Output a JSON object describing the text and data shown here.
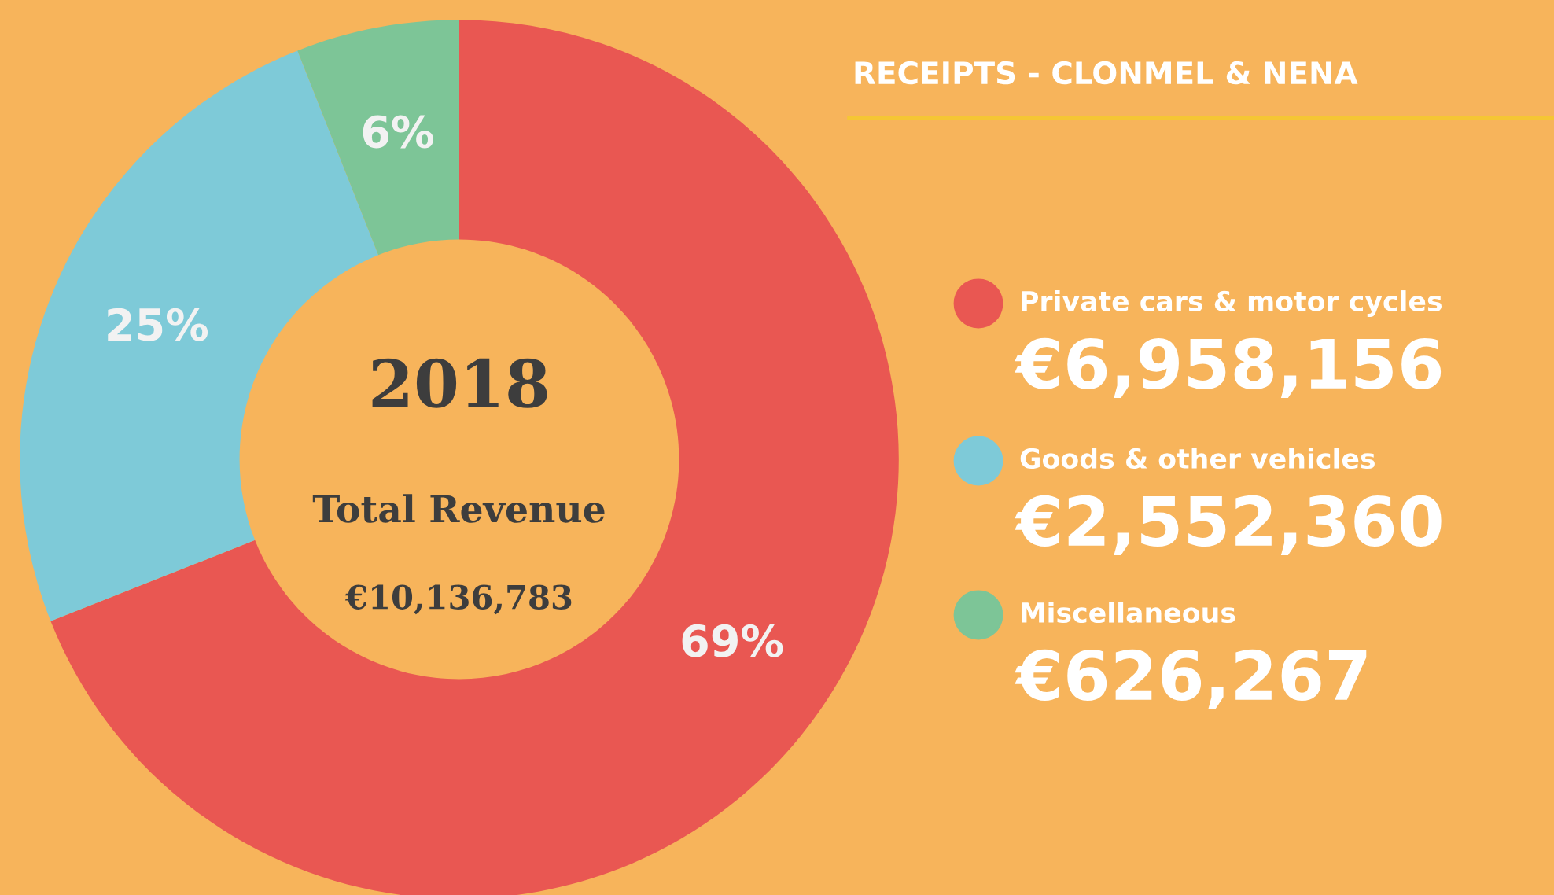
{
  "chart_data": {
    "type": "donut",
    "title": "RECEIPTS - CLONMEL & NENA",
    "categories": [
      "Private cars & motor cycles",
      "Goods & other vehicles",
      "Miscellaneous"
    ],
    "values": [
      69,
      25,
      6
    ],
    "colors": [
      "#e95752",
      "#7ecad8",
      "#7dc597"
    ],
    "value_labels": [
      "69%",
      "25%",
      "6%"
    ],
    "annotations": [
      "2018",
      "Total Revenue",
      "€10,136,783",
      "€6,958,156",
      "€2,552,360",
      "€626,267"
    ],
    "legend": "right"
  }
}
